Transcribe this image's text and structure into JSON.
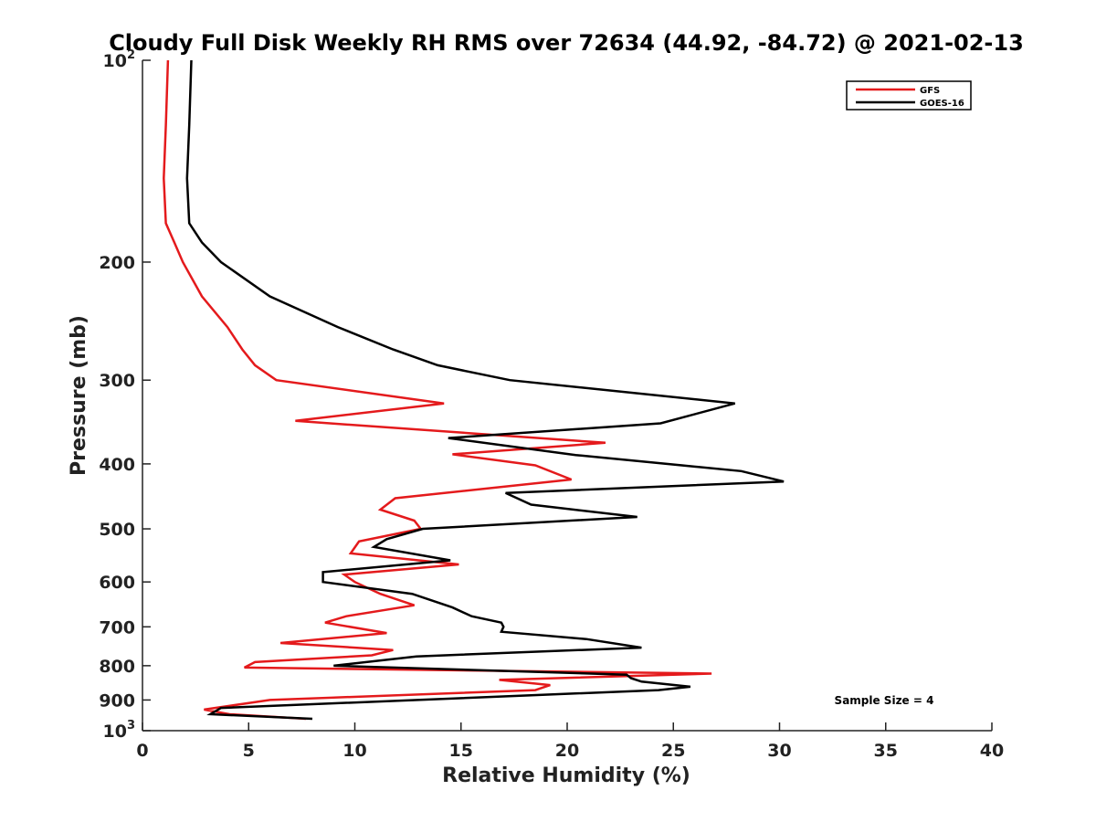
{
  "chart_data": {
    "type": "line",
    "title": "Cloudy Full Disk Weekly RH RMS over 72634 (44.92, -84.72) @ 2021-02-13",
    "xlabel": "Relative Humidity (%)",
    "ylabel": "Pressure (mb)",
    "xlim": [
      0,
      40
    ],
    "ylim": [
      100,
      1000
    ],
    "y_scale": "log",
    "y_reversed": true,
    "grid": false,
    "legend_position": "top-right",
    "x_ticks": [
      0,
      5,
      10,
      15,
      20,
      25,
      30,
      35,
      40
    ],
    "x_tick_labels": [
      "0",
      "5",
      "10",
      "15",
      "20",
      "25",
      "30",
      "35",
      "40"
    ],
    "y_ticks": [
      100,
      200,
      300,
      400,
      500,
      600,
      700,
      800,
      900,
      1000
    ],
    "y_tick_labels": [
      {
        "base": "10",
        "exp": "2"
      },
      {
        "base": "200",
        "exp": ""
      },
      {
        "base": "300",
        "exp": ""
      },
      {
        "base": "400",
        "exp": ""
      },
      {
        "base": "500",
        "exp": ""
      },
      {
        "base": "600",
        "exp": ""
      },
      {
        "base": "700",
        "exp": ""
      },
      {
        "base": "800",
        "exp": ""
      },
      {
        "base": "900",
        "exp": ""
      },
      {
        "base": "10",
        "exp": "3"
      }
    ],
    "annotation": "Sample Size = 4",
    "series": [
      {
        "name": "GFS",
        "color": "#e41a1c",
        "points": [
          [
            1.2,
            100
          ],
          [
            1.1,
            125
          ],
          [
            1.0,
            150
          ],
          [
            1.1,
            175
          ],
          [
            1.5,
            187
          ],
          [
            1.9,
            200
          ],
          [
            2.8,
            225
          ],
          [
            4.0,
            250
          ],
          [
            4.7,
            270
          ],
          [
            5.3,
            285
          ],
          [
            6.3,
            300
          ],
          [
            14.2,
            325
          ],
          [
            7.2,
            345
          ],
          [
            21.8,
            372
          ],
          [
            14.6,
            387
          ],
          [
            18.5,
            402
          ],
          [
            20.2,
            422
          ],
          [
            11.9,
            450
          ],
          [
            11.2,
            468
          ],
          [
            12.8,
            486
          ],
          [
            13.1,
            500
          ],
          [
            10.2,
            522
          ],
          [
            9.8,
            544
          ],
          [
            14.9,
            565
          ],
          [
            9.5,
            585
          ],
          [
            10.0,
            600
          ],
          [
            11.2,
            625
          ],
          [
            12.8,
            650
          ],
          [
            9.6,
            675
          ],
          [
            8.6,
            690
          ],
          [
            11.5,
            715
          ],
          [
            6.5,
            740
          ],
          [
            11.8,
            758
          ],
          [
            10.8,
            772
          ],
          [
            5.3,
            790
          ],
          [
            4.8,
            805
          ],
          [
            26.8,
            822
          ],
          [
            16.8,
            840
          ],
          [
            19.2,
            855
          ],
          [
            18.5,
            870
          ],
          [
            6.0,
            900
          ],
          [
            2.9,
            930
          ],
          [
            4.1,
            945
          ],
          [
            7.7,
            960
          ]
        ]
      },
      {
        "name": "GOES-16",
        "color": "#000000",
        "points": [
          [
            2.3,
            100
          ],
          [
            2.2,
            125
          ],
          [
            2.1,
            150
          ],
          [
            2.2,
            175
          ],
          [
            2.8,
            187
          ],
          [
            3.7,
            200
          ],
          [
            6.0,
            225
          ],
          [
            9.2,
            250
          ],
          [
            11.8,
            270
          ],
          [
            13.9,
            285
          ],
          [
            17.3,
            300
          ],
          [
            27.9,
            325
          ],
          [
            24.4,
            348
          ],
          [
            14.4,
            366
          ],
          [
            20.4,
            388
          ],
          [
            28.2,
            410
          ],
          [
            30.2,
            425
          ],
          [
            17.1,
            442
          ],
          [
            18.3,
            460
          ],
          [
            23.3,
            480
          ],
          [
            13.2,
            500
          ],
          [
            11.5,
            518
          ],
          [
            10.9,
            532
          ],
          [
            14.5,
            557
          ],
          [
            8.5,
            580
          ],
          [
            8.5,
            600
          ],
          [
            12.7,
            625
          ],
          [
            14.6,
            655
          ],
          [
            15.5,
            675
          ],
          [
            16.9,
            690
          ],
          [
            17.0,
            700
          ],
          [
            16.9,
            712
          ],
          [
            20.9,
            730
          ],
          [
            23.5,
            752
          ],
          [
            12.9,
            775
          ],
          [
            9.0,
            800
          ],
          [
            22.8,
            825
          ],
          [
            23.0,
            835
          ],
          [
            23.5,
            845
          ],
          [
            25.8,
            860
          ],
          [
            24.3,
            870
          ],
          [
            3.7,
            925
          ],
          [
            3.2,
            945
          ],
          [
            8.0,
            960
          ]
        ]
      }
    ]
  }
}
